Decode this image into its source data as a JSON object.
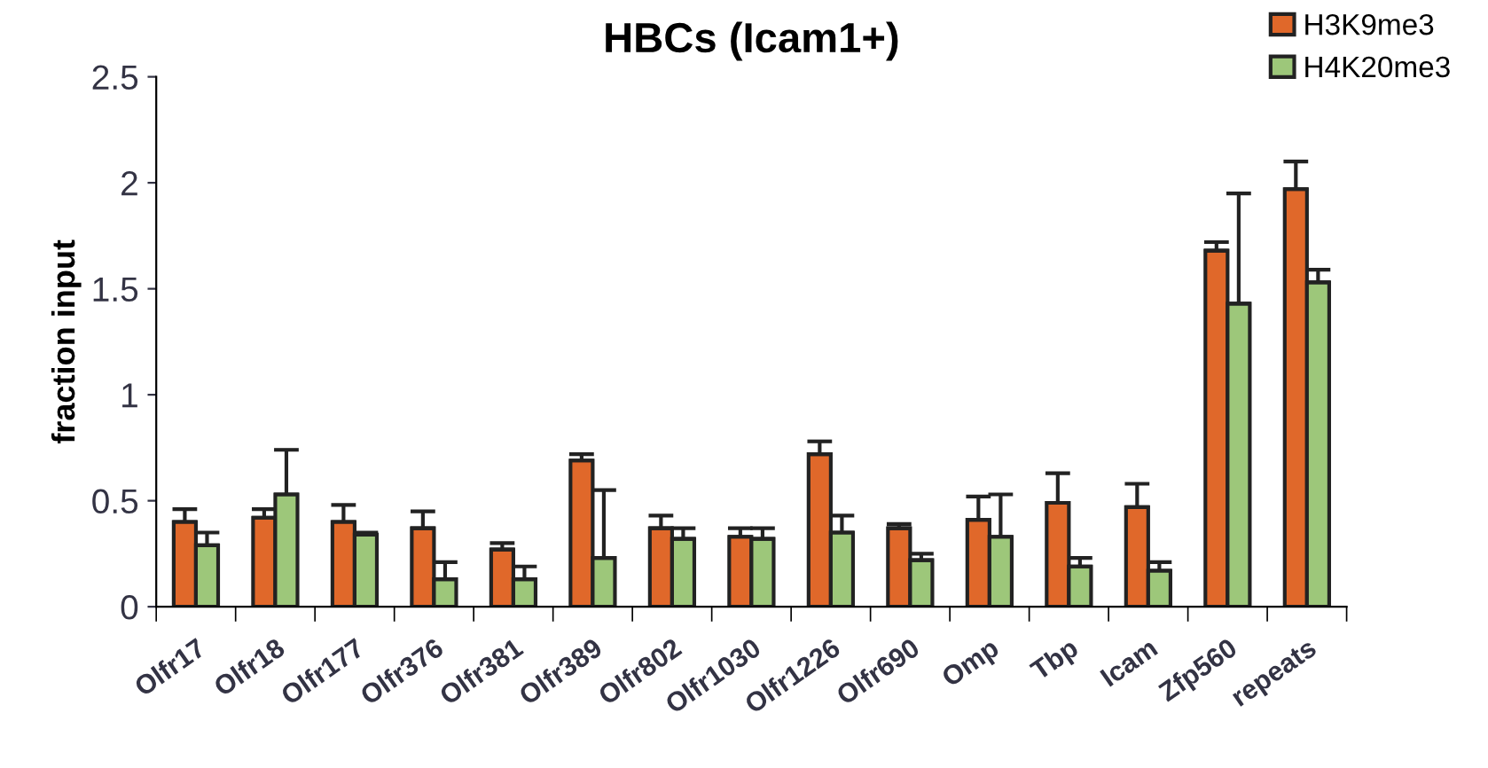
{
  "chart_data": {
    "type": "bar",
    "title": "HBCs (Icam1+)",
    "ylabel": "fraction input",
    "categories": [
      "Olfr17",
      "Olfr18",
      "Olfr177",
      "Olfr376",
      "Olfr381",
      "Olfr389",
      "Olfr802",
      "Olfr1030",
      "Olfr1226",
      "Olfr690",
      "Omp",
      "Tbp",
      "Icam",
      "Zfp560",
      "repeats"
    ],
    "series": [
      {
        "name": "H3K9me3",
        "color": "#e0682a",
        "values": [
          0.4,
          0.42,
          0.4,
          0.37,
          0.27,
          0.69,
          0.37,
          0.33,
          0.72,
          0.37,
          0.41,
          0.49,
          0.47,
          1.68,
          1.97
        ],
        "errors": [
          [
            0.4,
            0.46
          ],
          [
            0.42,
            0.46
          ],
          [
            0.4,
            0.48
          ],
          [
            0.37,
            0.45
          ],
          [
            0.27,
            0.3
          ],
          [
            0.69,
            0.72
          ],
          [
            0.37,
            0.43
          ],
          [
            0.33,
            0.37
          ],
          [
            0.72,
            0.78
          ],
          [
            0.37,
            0.39
          ],
          [
            0.41,
            0.52
          ],
          [
            0.49,
            0.63
          ],
          [
            0.47,
            0.58
          ],
          [
            1.68,
            1.72
          ],
          [
            1.97,
            2.1
          ]
        ]
      },
      {
        "name": "H4K20me3",
        "color": "#9dc77a",
        "values": [
          0.29,
          0.53,
          0.34,
          0.13,
          0.13,
          0.23,
          0.32,
          0.32,
          0.35,
          0.22,
          0.33,
          0.19,
          0.17,
          1.43,
          1.53
        ],
        "errors": [
          [
            0.29,
            0.35
          ],
          [
            0.53,
            0.74
          ],
          [
            0.34,
            0.35
          ],
          [
            0.13,
            0.21
          ],
          [
            0.13,
            0.19
          ],
          [
            0.23,
            0.55
          ],
          [
            0.32,
            0.37
          ],
          [
            0.32,
            0.37
          ],
          [
            0.35,
            0.43
          ],
          [
            0.22,
            0.25
          ],
          [
            0.33,
            0.53
          ],
          [
            0.19,
            0.23
          ],
          [
            0.17,
            0.21
          ],
          [
            1.43,
            1.95
          ],
          [
            1.53,
            1.59
          ]
        ]
      }
    ],
    "ylim": [
      0,
      2.5
    ],
    "yticks": [
      0,
      0.5,
      1,
      1.5,
      2,
      2.5
    ],
    "grid": false,
    "legend": "top right"
  }
}
